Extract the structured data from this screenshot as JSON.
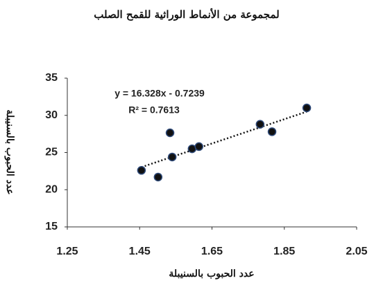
{
  "chart_data": {
    "type": "scatter",
    "title": "لمجموعة من الأنماط الوراثية للقمح الصلب",
    "x_label": "عدد الحبوب بالسنيبلة",
    "y_label": "عدد الحبوب بالسنيبلة",
    "annotations": [
      "y = 16.328x - 0.7239",
      "R² = 0.7613"
    ],
    "trendline": {
      "slope": 16.328,
      "intercept": -0.7239
    },
    "x": [
      1.455,
      1.501,
      1.534,
      1.54,
      1.595,
      1.614,
      1.783,
      1.816,
      1.912
    ],
    "values": [
      22.6,
      21.7,
      27.65,
      24.4,
      25.5,
      25.8,
      28.8,
      27.8,
      31.0
    ],
    "color": "#111111",
    "xlim": [
      1.25,
      2.05
    ],
    "xticks": [
      1.25,
      1.45,
      1.65,
      1.85,
      2.05
    ],
    "ylim": [
      15,
      35
    ],
    "yticks": [
      15,
      20,
      25,
      30,
      35
    ]
  }
}
